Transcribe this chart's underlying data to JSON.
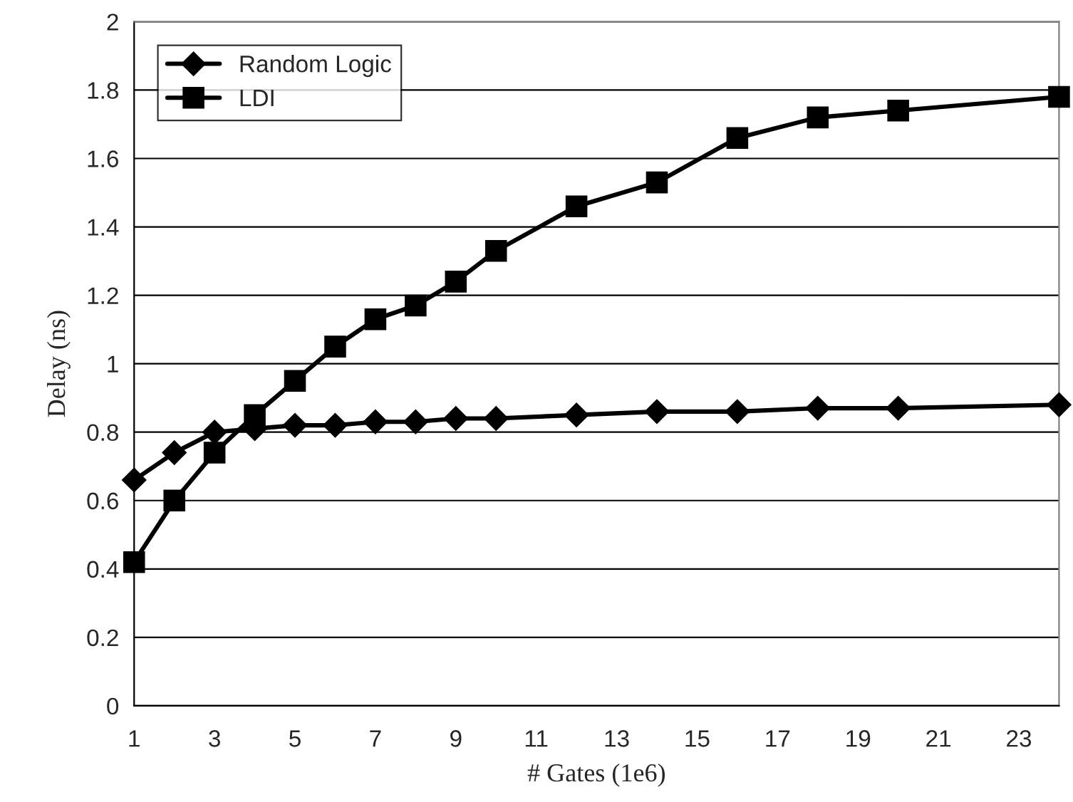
{
  "chart_data": {
    "type": "line",
    "xlabel": "# Gates (1e6)",
    "ylabel": "Delay (ns)",
    "x": [
      1,
      2,
      3,
      4,
      5,
      6,
      7,
      8,
      9,
      10,
      12,
      14,
      16,
      18,
      20,
      24
    ],
    "series": [
      {
        "name": "Random Logic",
        "color": "#000000",
        "marker": "diamond",
        "values": [
          0.66,
          0.74,
          0.8,
          0.81,
          0.82,
          0.82,
          0.83,
          0.83,
          0.84,
          0.84,
          0.85,
          0.86,
          0.86,
          0.87,
          0.87,
          0.88
        ]
      },
      {
        "name": "LDI",
        "color": "#000000",
        "marker": "square",
        "values": [
          0.42,
          0.6,
          0.74,
          0.85,
          0.95,
          1.05,
          1.13,
          1.17,
          1.24,
          1.33,
          1.46,
          1.53,
          1.66,
          1.72,
          1.74,
          1.78
        ]
      }
    ],
    "xlim": [
      1,
      24
    ],
    "xticks": [
      1,
      3,
      5,
      7,
      9,
      11,
      13,
      15,
      17,
      19,
      21,
      23
    ],
    "ylim": [
      0,
      2
    ],
    "yticks": [
      0,
      0.2,
      0.4,
      0.6,
      0.8,
      1,
      1.2,
      1.4,
      1.6,
      1.8,
      2
    ],
    "grid": "y",
    "legend": "top left",
    "line_style": "solid"
  }
}
